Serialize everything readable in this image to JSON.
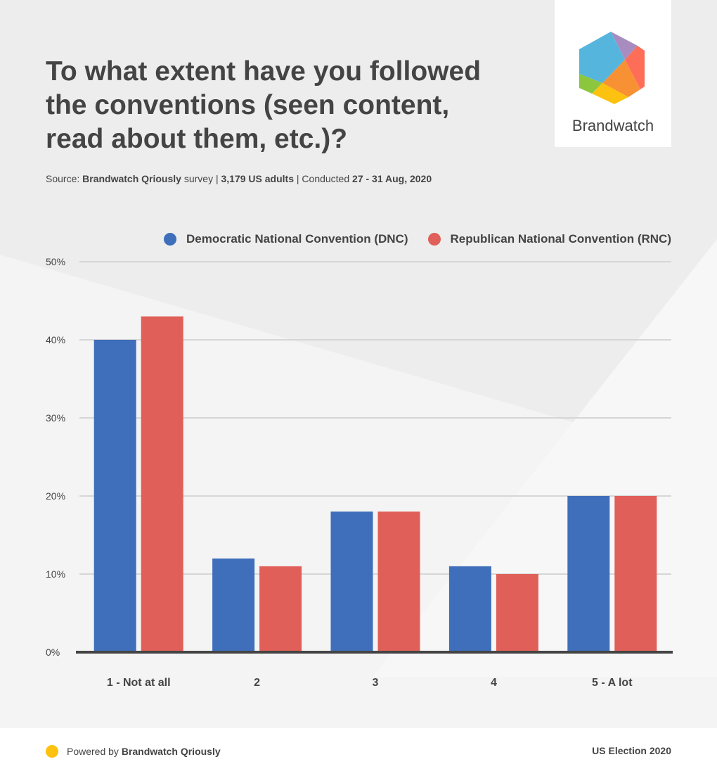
{
  "title": "To what extent have you followed the conventions (seen content, read about them, etc.)?",
  "source": {
    "prefix": "Source: ",
    "brand": "Brandwatch Qriously",
    "mid": " survey | ",
    "sample": "3,179 US adults",
    "mid2": " | Conducted ",
    "dates": "27 - 31 Aug, 2020"
  },
  "logo": {
    "text": "Brandwatch"
  },
  "footer": {
    "powered_prefix": "Powered by ",
    "powered_brand": "Brandwatch Qriously",
    "right": "US Election 2020",
    "dot_color": "#fcc20f"
  },
  "chart_data": {
    "type": "bar",
    "title": "To what extent have you followed the conventions (seen content, read about them, etc.)?",
    "categories": [
      "1 - Not at all",
      "2",
      "3",
      "4",
      "5 - A lot"
    ],
    "series": [
      {
        "name": "Democratic National Convention (DNC)",
        "color": "#3f6ebb",
        "values": [
          40,
          12,
          18,
          11,
          20
        ]
      },
      {
        "name": "Republican National Convention (RNC)",
        "color": "#e05f58",
        "values": [
          43,
          11,
          18,
          10,
          20
        ]
      }
    ],
    "ylim": [
      0,
      50
    ],
    "yticks": [
      0,
      10,
      20,
      30,
      40,
      50
    ],
    "ytick_labels": [
      "0%",
      "10%",
      "20%",
      "30%",
      "40%",
      "50%"
    ],
    "grid": true,
    "legend": "top-right",
    "xlabel": "",
    "ylabel": ""
  }
}
